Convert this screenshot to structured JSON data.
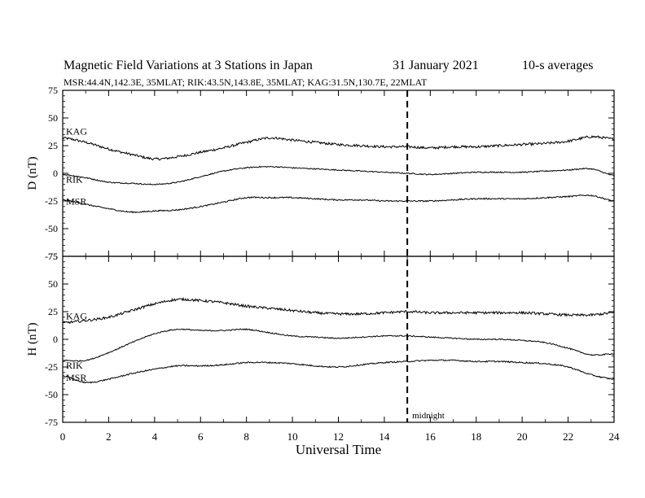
{
  "header": {
    "title": "Magnetic Field Variations at 3 Stations in Japan",
    "date": "31 January 2021",
    "averaging": "10-s averages",
    "subtitle": "MSR:44.4N,142.3E, 35MLAT;  RIK:43.5N,143.8E, 35MLAT;  KAG:31.5N,130.7E, 22MLAT"
  },
  "chart_data": [
    {
      "type": "line",
      "panel": "D",
      "ylabel": "D (nT)",
      "ylim": [
        -75,
        75
      ],
      "yticks": [
        75,
        50,
        25,
        0,
        -25,
        -50,
        -75
      ],
      "xlim": [
        0,
        24
      ],
      "xticks": [
        0,
        2,
        4,
        6,
        8,
        10,
        12,
        14,
        16,
        18,
        20,
        22,
        24
      ],
      "grid": false,
      "series": [
        {
          "name": "KAG",
          "x": [
            0,
            1,
            2,
            3,
            4,
            5,
            6,
            7,
            8,
            9,
            10,
            11,
            12,
            13,
            14,
            15,
            16,
            17,
            18,
            19,
            20,
            21,
            22,
            23,
            24
          ],
          "values": [
            32,
            28,
            22,
            17,
            13,
            15,
            19,
            23,
            28,
            32,
            30,
            28,
            26,
            25,
            24,
            24,
            23,
            24,
            24,
            25,
            26,
            27,
            29,
            33,
            31
          ]
        },
        {
          "name": "RIK",
          "x": [
            0,
            1,
            2,
            3,
            4,
            5,
            6,
            7,
            8,
            9,
            10,
            11,
            12,
            13,
            14,
            15,
            16,
            17,
            18,
            19,
            20,
            21,
            22,
            23,
            24
          ],
          "values": [
            -1,
            -4,
            -8,
            -9,
            -10,
            -8,
            -3,
            2,
            5,
            6,
            5,
            4,
            3,
            2,
            1,
            0,
            -1,
            0,
            1,
            1,
            1,
            2,
            3,
            4,
            -2
          ]
        },
        {
          "name": "MSR",
          "x": [
            0,
            1,
            2,
            3,
            4,
            5,
            6,
            7,
            8,
            9,
            10,
            11,
            12,
            13,
            14,
            15,
            16,
            17,
            18,
            19,
            20,
            21,
            22,
            23,
            24
          ],
          "values": [
            -24,
            -28,
            -32,
            -35,
            -34,
            -33,
            -30,
            -26,
            -22,
            -22,
            -22,
            -23,
            -24,
            -24,
            -25,
            -25,
            -25,
            -24,
            -23,
            -23,
            -23,
            -22,
            -21,
            -20,
            -25
          ]
        }
      ],
      "annotations": [
        "KAG",
        "RIK",
        "MSR"
      ]
    },
    {
      "type": "line",
      "panel": "H",
      "ylabel": "H (nT)",
      "ylim": [
        -75,
        75
      ],
      "yticks": [
        75,
        50,
        25,
        0,
        -25,
        -50,
        -75
      ],
      "xlim": [
        0,
        24
      ],
      "xticks": [
        0,
        2,
        4,
        6,
        8,
        10,
        12,
        14,
        16,
        18,
        20,
        22,
        24
      ],
      "xlabel": "Universal Time",
      "grid": false,
      "series": [
        {
          "name": "KAG",
          "x": [
            0,
            1,
            2,
            3,
            4,
            5,
            6,
            7,
            8,
            9,
            10,
            11,
            12,
            13,
            14,
            15,
            16,
            17,
            18,
            19,
            20,
            21,
            22,
            23,
            24
          ],
          "values": [
            15,
            17,
            20,
            26,
            32,
            36,
            35,
            33,
            30,
            28,
            26,
            24,
            23,
            23,
            24,
            25,
            24,
            24,
            24,
            24,
            24,
            23,
            22,
            22,
            24
          ]
        },
        {
          "name": "RIK",
          "x": [
            0,
            1,
            2,
            3,
            4,
            5,
            6,
            7,
            8,
            9,
            10,
            11,
            12,
            13,
            14,
            15,
            16,
            17,
            18,
            19,
            20,
            21,
            22,
            23,
            24
          ],
          "values": [
            -19,
            -19,
            -12,
            -3,
            5,
            9,
            8,
            8,
            9,
            6,
            3,
            2,
            1,
            2,
            3,
            3,
            2,
            1,
            0,
            0,
            -1,
            -3,
            -8,
            -14,
            -13
          ]
        },
        {
          "name": "MSR",
          "x": [
            0,
            1,
            2,
            3,
            4,
            5,
            6,
            7,
            8,
            9,
            10,
            11,
            12,
            13,
            14,
            15,
            16,
            17,
            18,
            19,
            20,
            21,
            22,
            23,
            24
          ],
          "values": [
            -33,
            -39,
            -36,
            -31,
            -27,
            -24,
            -24,
            -23,
            -21,
            -21,
            -22,
            -24,
            -25,
            -23,
            -21,
            -20,
            -19,
            -19,
            -20,
            -20,
            -21,
            -22,
            -25,
            -32,
            -36
          ]
        }
      ],
      "annotations": [
        "KAG",
        "RIK",
        "MSR"
      ]
    }
  ],
  "marker": {
    "x": 15,
    "label": "midnight",
    "style": "dashed vertical line"
  }
}
